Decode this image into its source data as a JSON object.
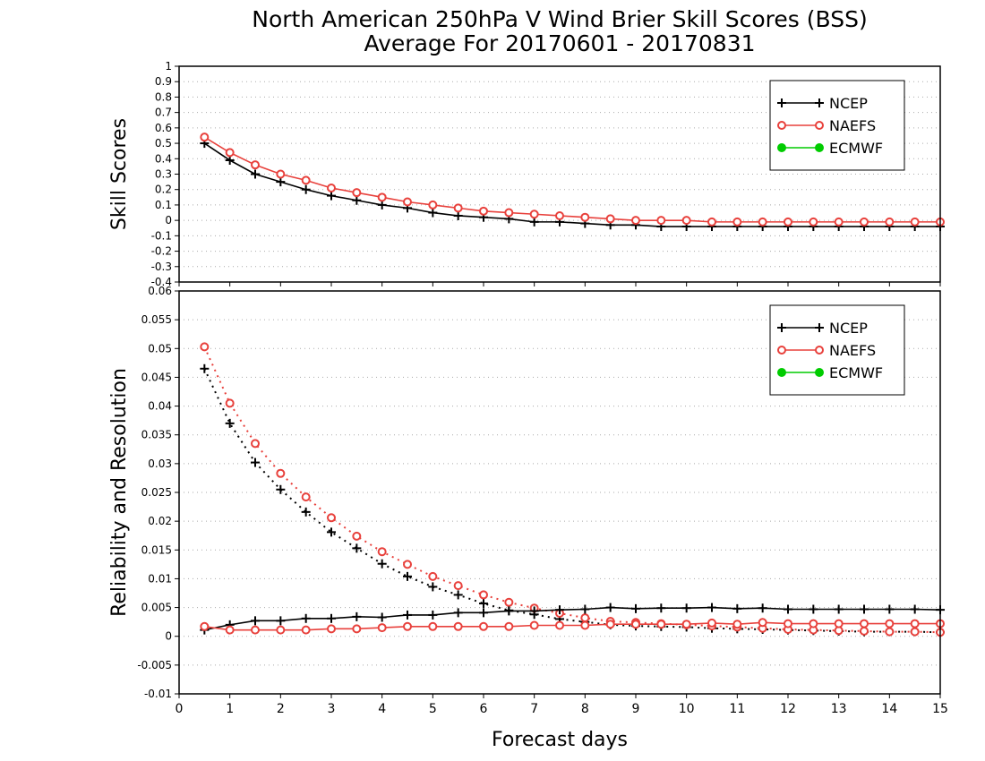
{
  "title_line1": "North American 250hPa V Wind Brier Skill Scores (BSS)",
  "title_line2": "Average For 20170601 - 20170831",
  "xlabel": "Forecast days",
  "chart_data": [
    {
      "type": "line",
      "ylabel": "Skill Scores",
      "xlim": [
        0,
        15
      ],
      "ylim": [
        -0.4,
        1.0
      ],
      "xticks": [
        0,
        1,
        2,
        3,
        4,
        5,
        6,
        7,
        8,
        9,
        10,
        11,
        12,
        13,
        14,
        15
      ],
      "yticks": [
        "1",
        "0.9",
        "0.8",
        "0.7",
        "0.6",
        "0.5",
        "0.4",
        "0.3",
        "0.2",
        "0.1",
        "0",
        "-0.1",
        "-0.2",
        "-0.3",
        "-0.4"
      ],
      "grid": true,
      "legend_position": "top-right",
      "legend": [
        {
          "name": "NCEP",
          "color": "#000000",
          "marker": "plus"
        },
        {
          "name": "NAEFS",
          "color": "#e8413c",
          "marker": "open-circle"
        },
        {
          "name": "ECMWF",
          "color": "#00cc00",
          "marker": "filled-circle"
        }
      ],
      "x": [
        0.5,
        1,
        1.5,
        2,
        2.5,
        3,
        3.5,
        4,
        4.5,
        5,
        5.5,
        6,
        6.5,
        7,
        7.5,
        8,
        8.5,
        9,
        9.5,
        10,
        10.5,
        11,
        11.5,
        12,
        12.5,
        13,
        13.5,
        14,
        14.5,
        15
      ],
      "series": [
        {
          "name": "NCEP",
          "style": "solid",
          "color": "#000000",
          "marker": "plus",
          "values": [
            0.5,
            0.39,
            0.3,
            0.25,
            0.2,
            0.16,
            0.13,
            0.1,
            0.08,
            0.05,
            0.03,
            0.02,
            0.01,
            -0.01,
            -0.01,
            -0.02,
            -0.03,
            -0.03,
            -0.04,
            -0.04,
            -0.04,
            -0.04,
            -0.04,
            -0.04,
            -0.04,
            -0.04,
            -0.04,
            -0.04,
            -0.04,
            -0.04
          ]
        },
        {
          "name": "NAEFS",
          "style": "solid",
          "color": "#e8413c",
          "marker": "open-circle",
          "values": [
            0.54,
            0.44,
            0.36,
            0.3,
            0.26,
            0.21,
            0.18,
            0.15,
            0.12,
            0.1,
            0.08,
            0.06,
            0.05,
            0.04,
            0.03,
            0.02,
            0.01,
            0.0,
            0.0,
            0.0,
            -0.01,
            -0.01,
            -0.01,
            -0.01,
            -0.01,
            -0.01,
            -0.01,
            -0.01,
            -0.01,
            -0.01
          ]
        }
      ]
    },
    {
      "type": "line",
      "ylabel": "Reliability and Resolution",
      "xlim": [
        0,
        15
      ],
      "ylim": [
        -0.01,
        0.06
      ],
      "xticks": [
        0,
        1,
        2,
        3,
        4,
        5,
        6,
        7,
        8,
        9,
        10,
        11,
        12,
        13,
        14,
        15
      ],
      "yticks": [
        "0.06",
        "0.055",
        "0.05",
        "0.045",
        "0.04",
        "0.035",
        "0.03",
        "0.025",
        "0.02",
        "0.015",
        "0.01",
        "0.005",
        "0",
        "-0.005",
        "-0.01"
      ],
      "grid": true,
      "legend_position": "top-right",
      "legend": [
        {
          "name": "NCEP",
          "color": "#000000",
          "marker": "plus"
        },
        {
          "name": "NAEFS",
          "color": "#e8413c",
          "marker": "open-circle"
        },
        {
          "name": "ECMWF",
          "color": "#00cc00",
          "marker": "filled-circle"
        }
      ],
      "x": [
        0.5,
        1,
        1.5,
        2,
        2.5,
        3,
        3.5,
        4,
        4.5,
        5,
        5.5,
        6,
        6.5,
        7,
        7.5,
        8,
        8.5,
        9,
        9.5,
        10,
        10.5,
        11,
        11.5,
        12,
        12.5,
        13,
        13.5,
        14,
        14.5,
        15
      ],
      "series": [
        {
          "name": "NCEP",
          "style": "dotted",
          "color": "#000000",
          "marker": "plus",
          "values": [
            0.0465,
            0.037,
            0.0302,
            0.0255,
            0.0216,
            0.0181,
            0.0153,
            0.0126,
            0.0104,
            0.0086,
            0.0072,
            0.0057,
            0.0045,
            0.0038,
            0.003,
            0.0025,
            0.002,
            0.0018,
            0.0017,
            0.0016,
            0.0014,
            0.0013,
            0.0012,
            0.0011,
            0.001,
            0.0009,
            0.0008,
            0.0008,
            0.0008,
            0.0007
          ]
        },
        {
          "name": "NAEFS",
          "style": "dotted",
          "color": "#e8413c",
          "marker": "open-circle",
          "values": [
            0.0503,
            0.0405,
            0.0335,
            0.0283,
            0.0242,
            0.0206,
            0.0174,
            0.0147,
            0.0125,
            0.0104,
            0.0088,
            0.0072,
            0.0059,
            0.0049,
            0.004,
            0.0032,
            0.0026,
            0.0024,
            0.0022,
            0.002,
            0.0018,
            0.0016,
            0.0014,
            0.0012,
            0.0011,
            0.001,
            0.0009,
            0.0008,
            0.0008,
            0.0007
          ]
        },
        {
          "name": "NCEP",
          "style": "solid",
          "color": "#000000",
          "marker": "plus",
          "values": [
            0.0011,
            0.002,
            0.0027,
            0.0027,
            0.0031,
            0.0031,
            0.0034,
            0.0033,
            0.0037,
            0.0037,
            0.0041,
            0.0041,
            0.0044,
            0.0044,
            0.0046,
            0.0047,
            0.005,
            0.0048,
            0.0049,
            0.0049,
            0.005,
            0.0048,
            0.0049,
            0.0047,
            0.0047,
            0.0047,
            0.0047,
            0.0047,
            0.0047,
            0.0046
          ]
        },
        {
          "name": "NAEFS",
          "style": "solid",
          "color": "#e8413c",
          "marker": "open-circle",
          "values": [
            0.0017,
            0.0011,
            0.0011,
            0.0011,
            0.0011,
            0.0013,
            0.0013,
            0.0015,
            0.0017,
            0.0017,
            0.0017,
            0.0017,
            0.0017,
            0.0019,
            0.0019,
            0.0019,
            0.0021,
            0.0021,
            0.0021,
            0.0021,
            0.0023,
            0.0021,
            0.0024,
            0.0022,
            0.0022,
            0.0022,
            0.0022,
            0.0022,
            0.0022,
            0.0022
          ]
        }
      ]
    }
  ]
}
